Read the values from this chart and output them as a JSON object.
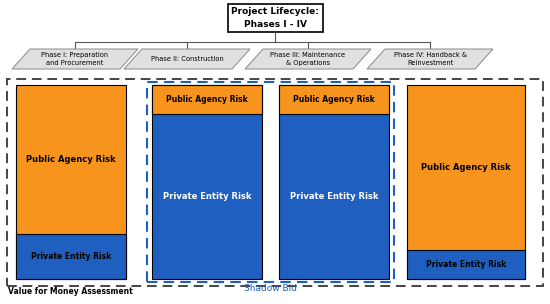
{
  "title": "Project Lifecycle:\nPhases I - IV",
  "phases": [
    "Phase I: Preparation\nand Procurement",
    "Phase II: Construction",
    "Phase III: Maintenance\n& Operations",
    "Phase IV: Handback &\nReinvestment"
  ],
  "orange_color": "#F7941D",
  "blue_color": "#1F5FBF",
  "gray_light": "#E0E0E0",
  "gray_dark": "#888888",
  "white": "#FFFFFF",
  "black": "#000000",
  "shadow_bid_label": "Shadow Bid",
  "vfm_label": "Value for Money Assessment",
  "figsize": [
    5.5,
    3.04
  ],
  "dpi": 100
}
